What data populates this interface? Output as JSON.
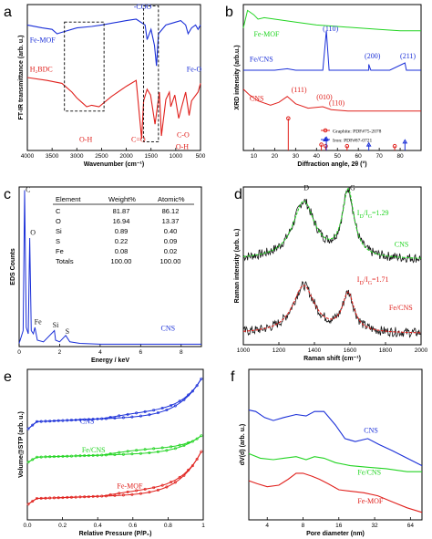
{
  "colors": {
    "blue": "#1a2fd8",
    "red": "#e0201c",
    "green": "#22d422",
    "black": "#111111",
    "gray": "#7a7a7a"
  },
  "chart_data": [
    {
      "id": "a",
      "panel_label": "a",
      "type": "line",
      "xlabel": "Wavenumber (cm⁻¹)",
      "ylabel": "FT-IR transmittance (arb. u.)",
      "xlim": [
        4000,
        500
      ],
      "x_reversed": true,
      "xticks": [
        "4000",
        "3500",
        "3000",
        "2500",
        "2000",
        "1500",
        "1000",
        "500"
      ],
      "series": [
        {
          "name": "Fe-MOF",
          "color": "blue",
          "x": [
            4000,
            3700,
            3500,
            3400,
            3300,
            3000,
            2700,
            2500,
            2000,
            1800,
            1620,
            1580,
            1500,
            1430,
            1390,
            1350,
            1200,
            1100,
            1000,
            900,
            800,
            750,
            680,
            600,
            550,
            500
          ],
          "y": [
            0.86,
            0.84,
            0.83,
            0.8,
            0.81,
            0.84,
            0.85,
            0.86,
            0.89,
            0.9,
            0.86,
            0.76,
            0.83,
            0.72,
            0.58,
            0.8,
            0.86,
            0.87,
            0.88,
            0.89,
            0.86,
            0.8,
            0.84,
            0.86,
            0.83,
            0.86
          ]
        },
        {
          "name": "H2BDC",
          "color": "red",
          "x": [
            4000,
            3600,
            3300,
            3100,
            3000,
            2900,
            2800,
            2700,
            2550,
            2300,
            2000,
            1800,
            1690,
            1650,
            1580,
            1510,
            1420,
            1330,
            1290,
            1200,
            1130,
            1100,
            1020,
            940,
            880,
            800,
            730,
            680,
            550,
            500
          ],
          "y": [
            0.5,
            0.48,
            0.46,
            0.4,
            0.36,
            0.33,
            0.3,
            0.31,
            0.3,
            0.37,
            0.44,
            0.48,
            0.08,
            0.34,
            0.42,
            0.38,
            0.18,
            0.4,
            0.1,
            0.35,
            0.4,
            0.3,
            0.38,
            0.22,
            0.3,
            0.4,
            0.24,
            0.34,
            0.4,
            0.46
          ]
        }
      ],
      "annotations": [
        {
          "text": "Fe-MOF",
          "color": "blue",
          "x": 3950,
          "y": 0.74
        },
        {
          "text": "-COO",
          "color": "blue",
          "x": 1850,
          "y": 0.97
        },
        {
          "text": "Fe-O",
          "color": "blue",
          "x": 780,
          "y": 0.54
        },
        {
          "text": "H₂BDC",
          "color": "red",
          "x": 3950,
          "y": 0.54
        },
        {
          "text": "O-H",
          "color": "red",
          "x": 2950,
          "y": 0.06
        },
        {
          "text": "C=O",
          "color": "red",
          "x": 1900,
          "y": 0.06
        },
        {
          "text": "C-O",
          "color": "red",
          "x": 980,
          "y": 0.09
        },
        {
          "text": "O-H",
          "color": "red",
          "x": 1000,
          "y": 0.01
        }
      ]
    },
    {
      "id": "b",
      "panel_label": "b",
      "type": "line",
      "xlabel": "Diffraction angle, 2θ (°)",
      "ylabel": "XRD intensity (arb.u.)",
      "xlim": [
        5,
        90
      ],
      "xticks": [
        "10",
        "20",
        "30",
        "40",
        "50",
        "60",
        "70",
        "80"
      ],
      "series": [
        {
          "name": "Fe-MOF",
          "color": "green",
          "x": [
            5,
            7,
            10,
            12,
            15,
            20,
            25,
            30,
            40,
            50,
            60,
            70,
            80,
            90
          ],
          "y": [
            0.84,
            0.96,
            0.93,
            0.9,
            0.91,
            0.9,
            0.89,
            0.88,
            0.86,
            0.85,
            0.84,
            0.83,
            0.82,
            0.82
          ]
        },
        {
          "name": "Fe/CNS",
          "color": "blue",
          "x": [
            5,
            20,
            26,
            30,
            43,
            44.7,
            46,
            55,
            65,
            65.0,
            66,
            75,
            82.3,
            83,
            90
          ],
          "y": [
            0.55,
            0.55,
            0.56,
            0.55,
            0.55,
            0.82,
            0.55,
            0.55,
            0.55,
            0.59,
            0.55,
            0.55,
            0.6,
            0.55,
            0.55
          ]
        },
        {
          "name": "CNS",
          "color": "red",
          "x": [
            5,
            8,
            12,
            18,
            22,
            26,
            30,
            36,
            43,
            47,
            55,
            70,
            90
          ],
          "y": [
            0.42,
            0.38,
            0.34,
            0.31,
            0.33,
            0.37,
            0.32,
            0.29,
            0.3,
            0.28,
            0.27,
            0.27,
            0.27
          ]
        }
      ],
      "annotations": [
        {
          "text": "Fe-MOF",
          "color": "green",
          "x": 10,
          "y": 0.78
        },
        {
          "text": "Fe/CNS",
          "color": "blue",
          "x": 8,
          "y": 0.61
        },
        {
          "text": "CNS",
          "color": "red",
          "x": 8,
          "y": 0.34
        },
        {
          "text": "(110)",
          "color": "blue",
          "x": 43,
          "y": 0.82
        },
        {
          "text": "(200)",
          "color": "blue",
          "x": 63,
          "y": 0.63
        },
        {
          "text": "(211)",
          "color": "blue",
          "x": 80,
          "y": 0.63
        },
        {
          "text": "(111)",
          "color": "red",
          "x": 28,
          "y": 0.4
        },
        {
          "text": "(010)",
          "color": "red",
          "x": 40,
          "y": 0.35
        },
        {
          "text": "(110)",
          "color": "red",
          "x": 46,
          "y": 0.31
        }
      ],
      "legend": [
        {
          "text": "Graphite: PDF#75-2078",
          "color": "red",
          "marker": "circle"
        },
        {
          "text": "Iron: PDF#87-0721",
          "color": "blue",
          "marker": "triangle"
        }
      ],
      "ref_peaks": [
        {
          "x": 26.5,
          "h": 0.22,
          "color": "red",
          "marker": "circle"
        },
        {
          "x": 42.3,
          "h": 0.04,
          "color": "red",
          "marker": "circle"
        },
        {
          "x": 44.4,
          "h": 0.03,
          "color": "red",
          "marker": "circle"
        },
        {
          "x": 54.6,
          "h": 0.03,
          "color": "red",
          "marker": "circle"
        },
        {
          "x": 77.4,
          "h": 0.03,
          "color": "red",
          "marker": "circle"
        },
        {
          "x": 44.7,
          "h": 0.08,
          "color": "blue",
          "marker": "triangle"
        },
        {
          "x": 65.0,
          "h": 0.04,
          "color": "blue",
          "marker": "triangle"
        },
        {
          "x": 82.3,
          "h": 0.06,
          "color": "blue",
          "marker": "triangle"
        }
      ]
    },
    {
      "id": "c",
      "panel_label": "c",
      "type": "line",
      "xlabel": "Energy / keV",
      "ylabel": "EDS Counts",
      "xlim": [
        0,
        9
      ],
      "xticks": [
        "0",
        "2",
        "4",
        "6",
        "8"
      ],
      "series": [
        {
          "name": "CNS",
          "color": "blue",
          "x": [
            0,
            0.2,
            0.27,
            0.35,
            0.45,
            0.52,
            0.6,
            0.7,
            0.78,
            0.9,
            1.2,
            1.74,
            1.8,
            2.0,
            2.3,
            2.5,
            3,
            4,
            6,
            8,
            9
          ],
          "y": [
            0.02,
            0.1,
            0.98,
            0.12,
            0.08,
            0.68,
            0.1,
            0.08,
            0.12,
            0.04,
            0.03,
            0.1,
            0.04,
            0.03,
            0.07,
            0.03,
            0.02,
            0.015,
            0.015,
            0.015,
            0.015
          ]
        }
      ],
      "annotations": [
        {
          "text": "C",
          "x": 0.32,
          "y": 0.97
        },
        {
          "text": "O",
          "x": 0.55,
          "y": 0.7
        },
        {
          "text": "Fe",
          "x": 0.75,
          "y": 0.14
        },
        {
          "text": "Si",
          "x": 1.65,
          "y": 0.12
        },
        {
          "text": "S",
          "x": 2.28,
          "y": 0.08
        },
        {
          "text": "CNS",
          "x": 7.0,
          "y": 0.1,
          "color": "blue"
        }
      ],
      "table": {
        "headers": [
          "Element",
          "Weight%",
          "Atomic%"
        ],
        "rows": [
          [
            "C",
            "81.87",
            "86.12"
          ],
          [
            "O",
            "16.94",
            "13.37"
          ],
          [
            "Si",
            "0.89",
            "0.40"
          ],
          [
            "S",
            "0.22",
            "0.09"
          ],
          [
            "Fe",
            "0.08",
            "0.02"
          ],
          [
            "Totals",
            "100.00",
            "100.00"
          ]
        ]
      }
    },
    {
      "id": "d",
      "panel_label": "d",
      "type": "line",
      "xlabel": "Raman shift (cm⁻¹)",
      "ylabel": "Raman intensity (arb. u.)",
      "xlim": [
        1000,
        2000
      ],
      "xticks": [
        "1000",
        "1200",
        "1400",
        "1600",
        "1800",
        "2000"
      ],
      "series": [
        {
          "name": "CNS",
          "color": "black",
          "fit_color": "green",
          "offset": 0.5,
          "D": 1340,
          "G": 1590,
          "ID": 0.36,
          "IG": 0.42,
          "base": 0.04
        },
        {
          "name": "Fe/CNS",
          "color": "black",
          "fit_color": "red",
          "offset": 0.04,
          "D": 1340,
          "G": 1590,
          "ID": 0.3,
          "IG": 0.24,
          "base": 0.03
        }
      ],
      "annotations": [
        {
          "text": "D",
          "x": 1340,
          "y": 0.98
        },
        {
          "text": "G",
          "x": 1600,
          "y": 0.98
        },
        {
          "text": "I_D/I_G=1.29",
          "color": "green",
          "x": 1640,
          "y": 0.82
        },
        {
          "text": "CNS",
          "color": "green",
          "x": 1850,
          "y": 0.62
        },
        {
          "text": "I_D/I_G=1.71",
          "color": "red",
          "x": 1640,
          "y": 0.4
        },
        {
          "text": "Fe/CNS",
          "color": "red",
          "x": 1820,
          "y": 0.22
        }
      ]
    },
    {
      "id": "e",
      "panel_label": "e",
      "type": "line",
      "xlabel": "Relative Pressure (P/P₀)",
      "ylabel": "Volume@STP (arb. u.)",
      "xlim": [
        0,
        1
      ],
      "xticks": [
        "0.0",
        "0.2",
        "0.4",
        "0.6",
        "0.8",
        "1"
      ],
      "series": [
        {
          "name": "CNS",
          "color": "blue",
          "base": 0.6,
          "rise": 0.1,
          "jump": 0.26
        },
        {
          "name": "Fe/CNS",
          "color": "green",
          "base": 0.38,
          "rise": 0.07,
          "jump": 0.12
        },
        {
          "name": "Fe-MOF",
          "color": "red",
          "base": 0.1,
          "rise": 0.08,
          "jump": 0.3
        }
      ],
      "annotations": [
        {
          "text": "CNS",
          "color": "blue",
          "x": 0.3,
          "y": 0.64
        },
        {
          "text": "Fe/CNS",
          "color": "green",
          "x": 0.31,
          "y": 0.45
        },
        {
          "text": "Fe-MOF",
          "color": "red",
          "x": 0.51,
          "y": 0.21
        }
      ]
    },
    {
      "id": "f",
      "panel_label": "f",
      "type": "line",
      "xlabel": "Pore diameter (nm)",
      "ylabel": "dV(d) (arb. u.)",
      "xscale": "log2",
      "xlim": [
        2.8,
        80
      ],
      "xticks": [
        "4",
        "8",
        "16",
        "32",
        "64"
      ],
      "series": [
        {
          "name": "CNS",
          "color": "blue",
          "x": [
            2.8,
            3.2,
            3.8,
            4.5,
            5.5,
            7,
            8.5,
            10,
            12,
            15,
            18,
            22,
            28,
            35,
            45,
            60,
            80
          ],
          "y": [
            0.73,
            0.72,
            0.68,
            0.66,
            0.68,
            0.7,
            0.69,
            0.72,
            0.72,
            0.63,
            0.54,
            0.52,
            0.54,
            0.5,
            0.46,
            0.41,
            0.36
          ]
        },
        {
          "name": "Fe/CNS",
          "color": "green",
          "x": [
            2.8,
            3.5,
            4.5,
            5.5,
            7,
            8.5,
            10,
            12,
            15,
            20,
            28,
            40,
            60,
            80
          ],
          "y": [
            0.44,
            0.41,
            0.4,
            0.41,
            0.42,
            0.4,
            0.42,
            0.41,
            0.38,
            0.36,
            0.35,
            0.34,
            0.32,
            0.32
          ]
        },
        {
          "name": "Fe-MOF",
          "color": "red",
          "x": [
            2.8,
            3.3,
            4,
            5,
            6,
            7,
            8,
            9.5,
            11,
            13,
            16,
            20,
            26,
            34,
            45,
            60,
            80
          ],
          "y": [
            0.26,
            0.24,
            0.22,
            0.23,
            0.27,
            0.31,
            0.31,
            0.29,
            0.27,
            0.24,
            0.2,
            0.19,
            0.18,
            0.16,
            0.12,
            0.08,
            0.05
          ]
        }
      ],
      "annotations": [
        {
          "text": "CNS",
          "color": "blue",
          "x": 26,
          "y": 0.58
        },
        {
          "text": "Fe/CNS",
          "color": "green",
          "x": 23,
          "y": 0.3
        },
        {
          "text": "Fe-MOF",
          "color": "red",
          "x": 23,
          "y": 0.11
        }
      ]
    }
  ]
}
